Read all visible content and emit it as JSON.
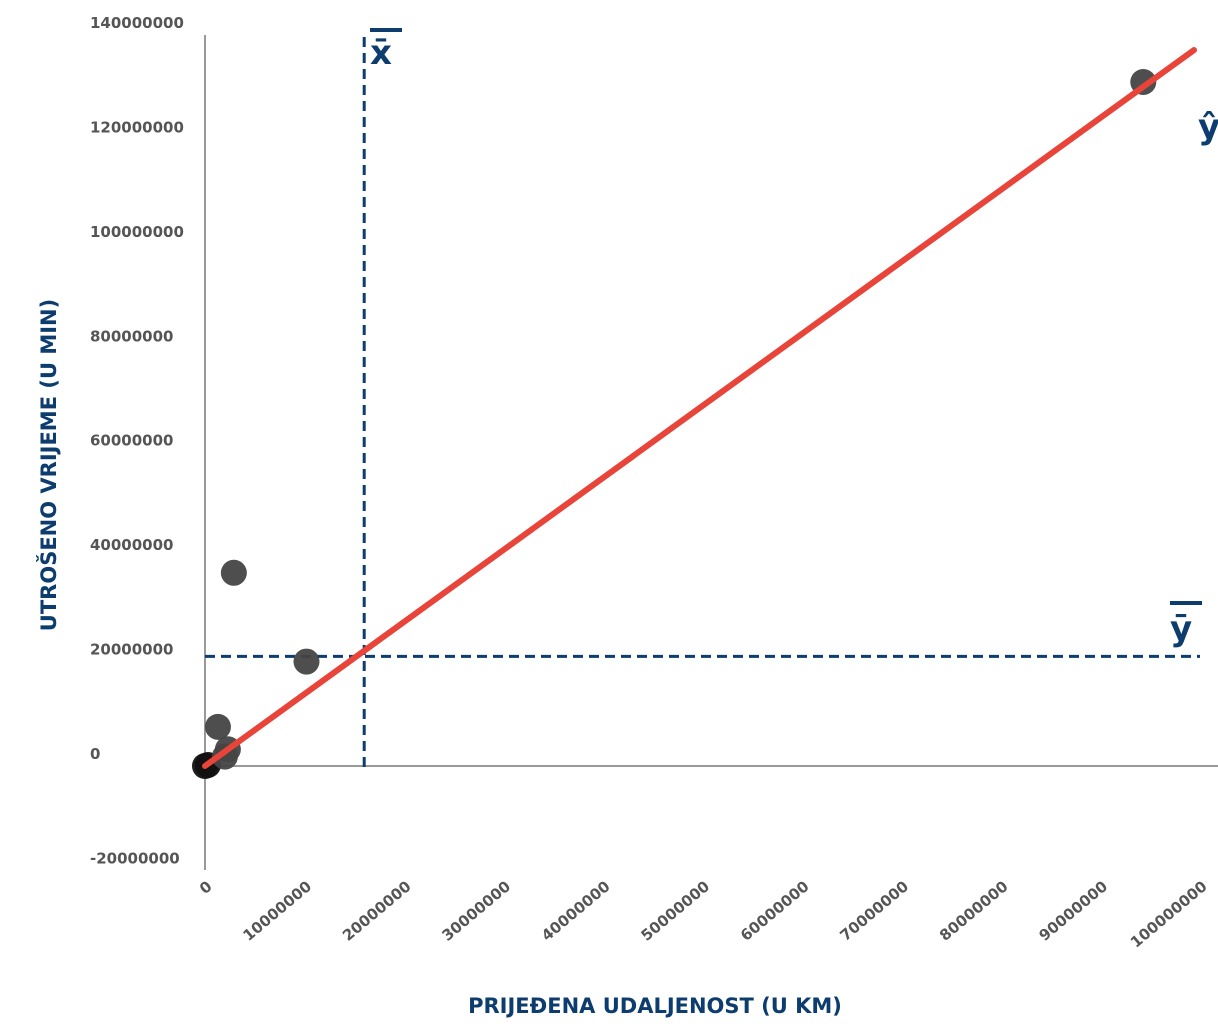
{
  "chart_data": {
    "type": "scatter",
    "xlabel": "PRIJEĐENA UDALJENOST (U KM)",
    "ylabel": "UTROŠENO VRIJEME (U MIN)",
    "xlim": [
      0,
      100000000
    ],
    "ylim": [
      -20000000,
      140000000
    ],
    "x_ticks": [
      "0",
      "10000000",
      "20000000",
      "30000000",
      "40000000",
      "50000000",
      "60000000",
      "70000000",
      "80000000",
      "90000000",
      "100000000"
    ],
    "y_ticks": [
      "140000000",
      "120000000",
      "100000000",
      "80000000",
      "60000000",
      "40000000",
      "20000000",
      "0",
      "-20000000"
    ],
    "points": [
      {
        "x": 0,
        "y": 0
      },
      {
        "x": 300000,
        "y": 200000
      },
      {
        "x": 1300000,
        "y": 7500000
      },
      {
        "x": 2300000,
        "y": 3200000
      },
      {
        "x": 2000000,
        "y": 1800000
      },
      {
        "x": 2900000,
        "y": 37000000
      },
      {
        "x": 10200000,
        "y": 20000000
      },
      {
        "x": 94300000,
        "y": 131000000
      }
    ],
    "regression_line": {
      "x": [
        0,
        100000000
      ],
      "y": [
        0,
        137500000
      ],
      "color": "#e8443a"
    },
    "mean_x": {
      "value": 16000000,
      "label": "x̄"
    },
    "mean_y": {
      "value": 21000000,
      "label": "ȳ"
    },
    "y_hat_label": "ŷ",
    "colors": {
      "points": "#444444",
      "origin_point": "#111111",
      "mean_lines": "#0d3c6e",
      "axis": "#999999"
    },
    "grid": false
  }
}
